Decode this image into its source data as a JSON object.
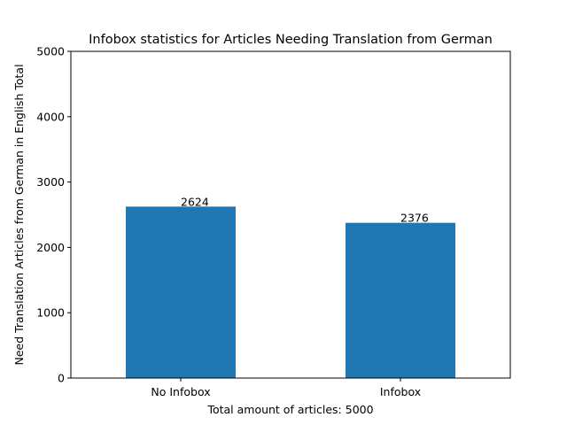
{
  "chart_data": {
    "type": "bar",
    "title": "Infobox statistics for Articles Needing Translation from German",
    "xlabel": "Total amount of articles: 5000",
    "ylabel": "Need Translation Articles from German in English Total",
    "categories": [
      "No Infobox",
      "Infobox"
    ],
    "values": [
      2624,
      2376
    ],
    "data_labels": [
      "2624",
      "2376"
    ],
    "ylim": [
      0,
      5000
    ],
    "yticks": [
      0,
      1000,
      2000,
      3000,
      4000,
      5000
    ],
    "ytick_labels": [
      "0",
      "1000",
      "2000",
      "3000",
      "4000",
      "5000"
    ],
    "grid": false,
    "legend": "none",
    "bar_color": "#1f77b4"
  }
}
